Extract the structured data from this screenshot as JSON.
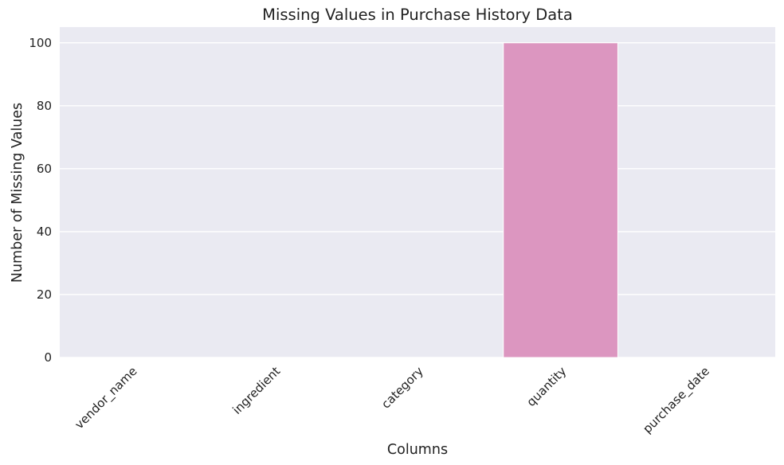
{
  "chart_data": {
    "type": "bar",
    "title": "Missing Values in Purchase History Data",
    "xlabel": "Columns",
    "ylabel": "Number of Missing Values",
    "categories": [
      "vendor_name",
      "ingredient",
      "category",
      "quantity",
      "purchase_date"
    ],
    "values": [
      0,
      0,
      0,
      100,
      0
    ],
    "ylim": [
      0,
      105
    ],
    "yticks": [
      0,
      20,
      40,
      60,
      80,
      100
    ],
    "bar_colors": [
      "#66c2a5",
      "#fc8d62",
      "#8da0cb",
      "#dc96c0",
      "#a6d854"
    ],
    "grid": true,
    "background_color": "#eaeaf2",
    "grid_color": "#ffffff"
  }
}
